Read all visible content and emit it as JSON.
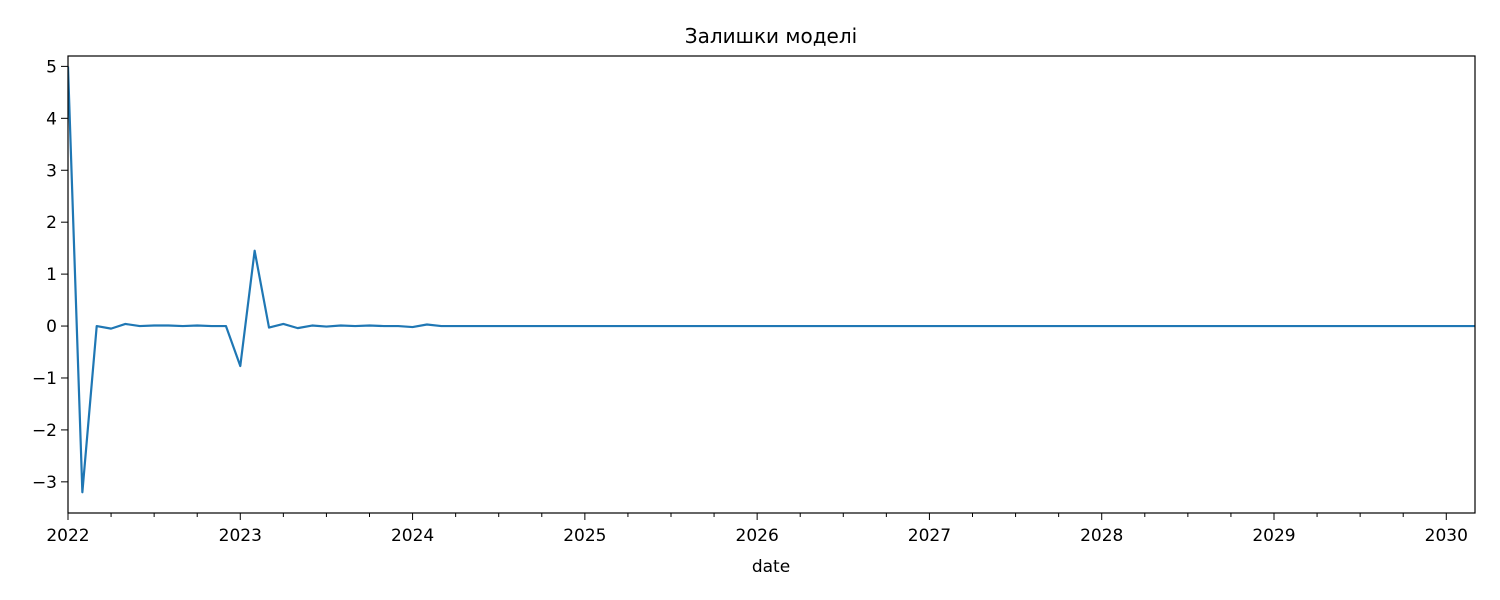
{
  "chart_data": {
    "type": "line",
    "title": "Залишки моделі",
    "xlabel": "date",
    "ylabel": "",
    "x_tick_labels": [
      "2022",
      "2023",
      "2024",
      "2025",
      "2026",
      "2027",
      "2028",
      "2029",
      "2030"
    ],
    "y_tick_labels": [
      "−3",
      "−2",
      "−1",
      "0",
      "1",
      "2",
      "3",
      "4",
      "5"
    ],
    "xlim": [
      "2022-01",
      "2030-03"
    ],
    "ylim": [
      -3.6,
      5.2
    ],
    "grid": false,
    "legend": "none",
    "series": [
      {
        "color": "#1f77b4",
        "x": [
          "2022-01",
          "2022-02",
          "2022-03",
          "2022-04",
          "2022-05",
          "2022-06",
          "2022-07",
          "2022-08",
          "2022-09",
          "2022-10",
          "2022-11",
          "2022-12",
          "2023-01",
          "2023-02",
          "2023-03",
          "2023-04",
          "2023-05",
          "2023-06",
          "2023-07",
          "2023-08",
          "2023-09",
          "2023-10",
          "2023-11",
          "2023-12",
          "2024-01",
          "2024-02",
          "2024-03",
          "2030-03"
        ],
        "values": [
          5.0,
          -3.2,
          0.0,
          -0.05,
          0.04,
          0.0,
          0.01,
          0.01,
          0.0,
          0.01,
          0.0,
          0.0,
          -0.77,
          1.45,
          -0.03,
          0.04,
          -0.04,
          0.01,
          -0.01,
          0.01,
          0.0,
          0.01,
          0.0,
          0.0,
          -0.02,
          0.03,
          0.0,
          0.0
        ]
      }
    ]
  }
}
